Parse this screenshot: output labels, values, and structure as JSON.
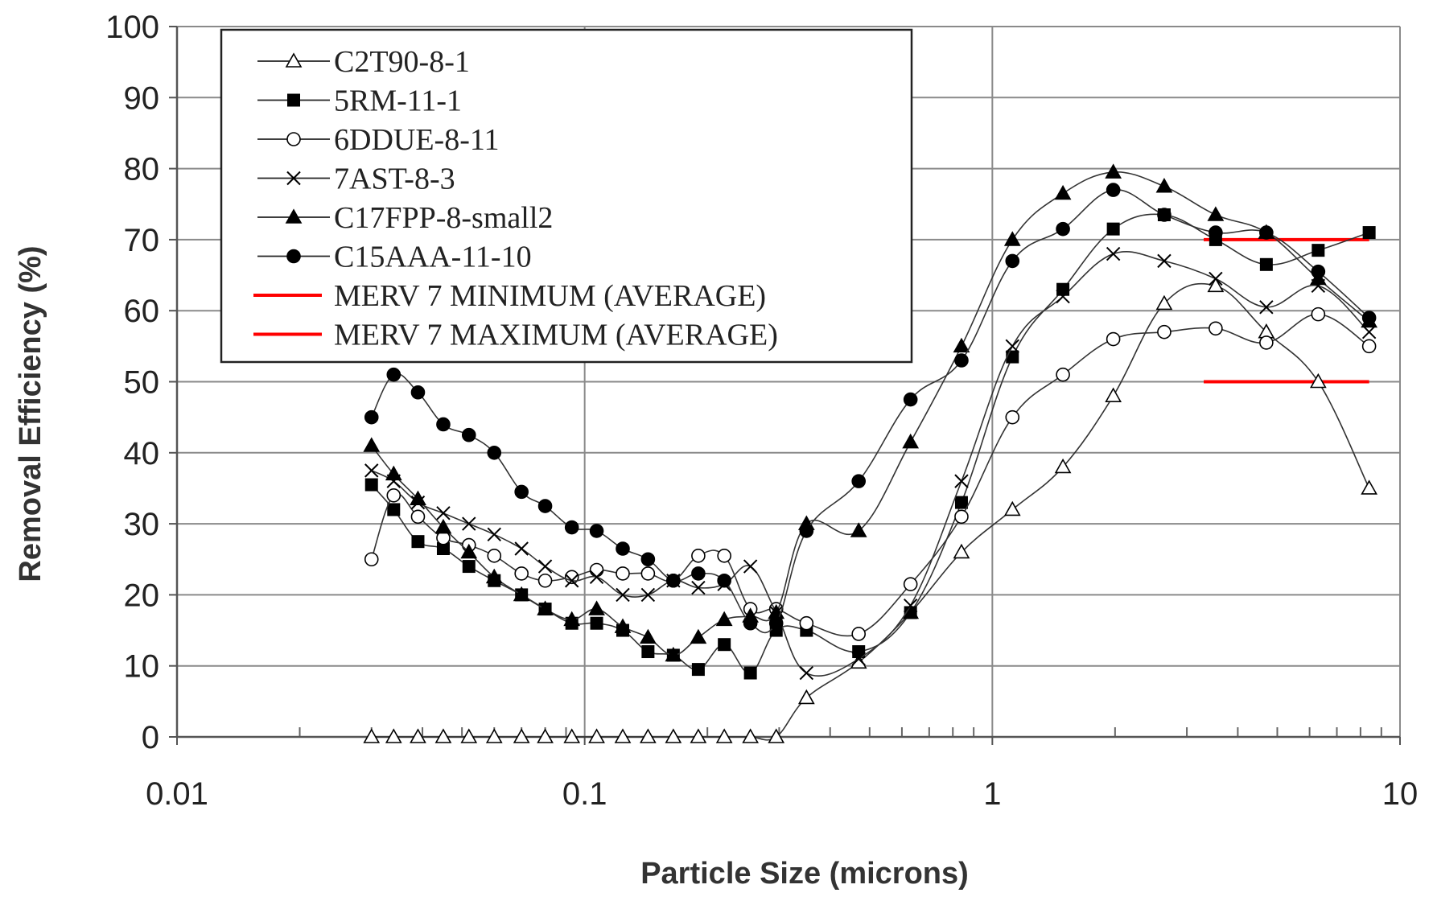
{
  "chart_data": {
    "type": "line",
    "title": "",
    "xlabel": "Particle Size (microns)",
    "ylabel": "Removal Efficiency (%)",
    "x_scale": "log",
    "xlim": [
      0.01,
      10
    ],
    "ylim": [
      0,
      100
    ],
    "x_ticks": [
      0.01,
      0.1,
      1,
      10
    ],
    "x_tick_labels": [
      "0.01",
      "0.1",
      "1",
      "10"
    ],
    "y_ticks": [
      0,
      10,
      20,
      30,
      40,
      50,
      60,
      70,
      80,
      90,
      100
    ],
    "y_tick_labels": [
      "0",
      "10",
      "20",
      "30",
      "40",
      "50",
      "60",
      "70",
      "80",
      "90",
      "100"
    ],
    "grid": true,
    "legend_position": "top-left",
    "x": [
      0.03,
      0.034,
      0.039,
      0.045,
      0.052,
      0.06,
      0.07,
      0.08,
      0.093,
      0.107,
      0.124,
      0.143,
      0.165,
      0.19,
      0.22,
      0.255,
      0.295,
      0.35,
      0.47,
      0.63,
      0.84,
      1.12,
      1.49,
      1.98,
      2.64,
      3.53,
      4.7,
      6.3,
      8.4
    ],
    "series": [
      {
        "name": "C2T90-8-1",
        "marker": "open-triangle",
        "values": [
          0,
          0,
          0,
          0,
          0,
          0,
          0,
          0,
          0,
          0,
          0,
          0,
          0,
          0,
          0,
          0,
          0,
          5.5,
          10.5,
          17.5,
          26,
          32,
          38,
          48,
          61,
          63.5,
          57,
          50,
          35
        ]
      },
      {
        "name": "5RM-11-1",
        "marker": "filled-square",
        "values": [
          35.5,
          32,
          27.5,
          26.5,
          24,
          22,
          20,
          18,
          16,
          16,
          15,
          12,
          11.5,
          9.5,
          13,
          9,
          15,
          15,
          12,
          17.5,
          33,
          53.5,
          63,
          71.5,
          73.5,
          70,
          66.5,
          68.5,
          71
        ]
      },
      {
        "name": "6DDUE-8-11",
        "marker": "open-circle",
        "values": [
          25,
          34,
          31,
          28,
          27,
          25.5,
          23,
          22,
          22.5,
          23.5,
          23,
          23,
          22,
          25.5,
          25.5,
          18,
          18,
          16,
          14.5,
          21.5,
          31,
          45,
          51,
          56,
          57,
          57.5,
          55.5,
          59.5,
          55
        ]
      },
      {
        "name": "7AST-8-3",
        "marker": "x",
        "values": [
          37.5,
          36,
          33,
          31.5,
          30,
          28.5,
          26.5,
          24,
          22,
          22.5,
          20,
          20,
          22,
          21,
          21.5,
          24,
          17.5,
          9,
          11,
          18.5,
          36,
          55,
          62,
          68,
          67,
          64.5,
          60.5,
          63.5,
          57
        ]
      },
      {
        "name": "C17FPP-8-small2",
        "marker": "filled-triangle",
        "values": [
          41,
          37,
          33.5,
          29.5,
          26,
          22.5,
          20,
          18,
          16.5,
          18,
          15.5,
          14,
          11.5,
          14,
          16.5,
          17,
          17.5,
          30,
          29,
          41.5,
          55,
          70,
          76.5,
          79.5,
          77.5,
          73.5,
          71,
          64.5,
          58.5
        ]
      },
      {
        "name": "C15AAA-11-10",
        "marker": "filled-circle",
        "values": [
          45,
          51,
          48.5,
          44,
          42.5,
          40,
          34.5,
          32.5,
          29.5,
          29,
          26.5,
          25,
          22,
          23,
          22,
          16,
          16,
          29,
          36,
          47.5,
          53,
          67,
          71.5,
          77,
          73.5,
          71,
          71,
          65.5,
          59
        ]
      }
    ],
    "reference_lines": [
      {
        "name": "MERV 7 MINIMUM (AVERAGE)",
        "color": "#ff0000",
        "segments": [
          {
            "x": [
              3.3,
              8.4
            ],
            "y": 50
          }
        ]
      },
      {
        "name": "MERV 7 MAXIMUM (AVERAGE)",
        "color": "#ff0000",
        "segments": [
          {
            "x": [
              3.3,
              8.4
            ],
            "y": 70
          }
        ]
      }
    ]
  }
}
